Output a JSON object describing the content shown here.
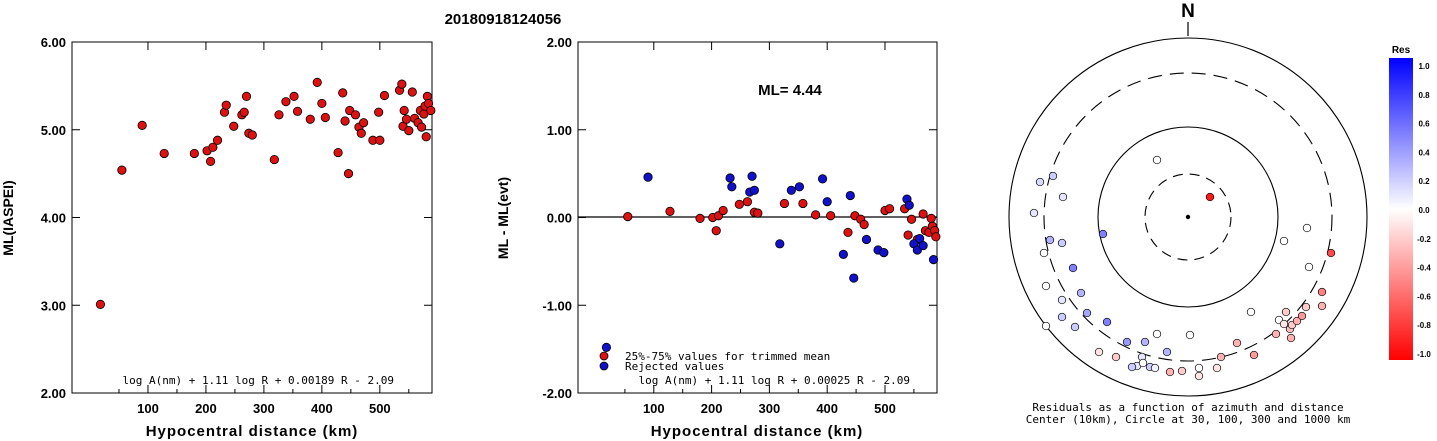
{
  "title": "20180918124056",
  "colors": {
    "red": "#dd1111",
    "blue": "#1111cc",
    "frame": "#000000"
  },
  "chart_data": [
    {
      "type": "scatter",
      "xlabel": "Hypocentral distance (km)",
      "ylabel": "ML(IASPEI)",
      "xlim": [
        0,
        590
      ],
      "ylim": [
        2.0,
        6.0
      ],
      "xticks": [
        "100",
        "200",
        "300",
        "400",
        "500"
      ],
      "yticks": [
        "2.00",
        "3.00",
        "4.00",
        "5.00",
        "6.00"
      ],
      "formula": "log A(nm) + 1.11 log R + 0.00189 R - 2.09",
      "points": [
        [
          18,
          3.01
        ],
        [
          55,
          4.54
        ],
        [
          90,
          5.05
        ],
        [
          128,
          4.73
        ],
        [
          180,
          4.73
        ],
        [
          202,
          4.76
        ],
        [
          208,
          4.64
        ],
        [
          212,
          4.8
        ],
        [
          220,
          4.88
        ],
        [
          232,
          5.2
        ],
        [
          235,
          5.28
        ],
        [
          248,
          5.04
        ],
        [
          262,
          5.17
        ],
        [
          266,
          5.2
        ],
        [
          270,
          5.38
        ],
        [
          274,
          4.96
        ],
        [
          280,
          4.94
        ],
        [
          318,
          4.66
        ],
        [
          326,
          5.17
        ],
        [
          338,
          5.32
        ],
        [
          352,
          5.38
        ],
        [
          358,
          5.21
        ],
        [
          380,
          5.12
        ],
        [
          392,
          5.54
        ],
        [
          400,
          5.3
        ],
        [
          406,
          5.14
        ],
        [
          428,
          4.74
        ],
        [
          436,
          5.42
        ],
        [
          440,
          5.1
        ],
        [
          446,
          4.5
        ],
        [
          448,
          5.22
        ],
        [
          458,
          5.17
        ],
        [
          464,
          5.03
        ],
        [
          468,
          4.96
        ],
        [
          472,
          5.08
        ],
        [
          488,
          4.88
        ],
        [
          498,
          5.2
        ],
        [
          500,
          4.88
        ],
        [
          508,
          5.39
        ],
        [
          534,
          5.45
        ],
        [
          538,
          5.52
        ],
        [
          540,
          5.04
        ],
        [
          542,
          5.22
        ],
        [
          546,
          5.12
        ],
        [
          550,
          4.99
        ],
        [
          556,
          5.43
        ],
        [
          560,
          5.13
        ],
        [
          566,
          5.08
        ],
        [
          570,
          5.22
        ],
        [
          572,
          5.03
        ],
        [
          576,
          5.18
        ],
        [
          578,
          5.27
        ],
        [
          580,
          4.92
        ],
        [
          582,
          5.38
        ],
        [
          584,
          5.3
        ],
        [
          588,
          5.22
        ]
      ]
    },
    {
      "type": "scatter",
      "xlabel": "Hypocentral distance (km)",
      "ylabel": "ML - ML(evt)",
      "xlim": [
        0,
        590
      ],
      "ylim": [
        -2.0,
        2.0
      ],
      "xticks": [
        "100",
        "200",
        "300",
        "400",
        "500"
      ],
      "yticks": [
        "-2.00",
        "-1.00",
        "0.00",
        "1.00",
        "2.00"
      ],
      "annotation": "ML= 4.44",
      "formula": "log A(nm) + 1.11 log R + 0.00025 R - 2.09",
      "legend": {
        "position": "bottom-left",
        "entries": [
          "25%-75% values for trimmed mean",
          "Rejected values"
        ]
      },
      "points_used": [
        [
          55,
          0.01
        ],
        [
          128,
          0.07
        ],
        [
          180,
          -0.01
        ],
        [
          202,
          0.0
        ],
        [
          208,
          -0.15
        ],
        [
          212,
          0.02
        ],
        [
          220,
          0.08
        ],
        [
          248,
          0.15
        ],
        [
          262,
          0.18
        ],
        [
          274,
          0.06
        ],
        [
          280,
          0.05
        ],
        [
          326,
          0.16
        ],
        [
          358,
          0.16
        ],
        [
          380,
          0.03
        ],
        [
          406,
          0.02
        ],
        [
          436,
          -0.17
        ],
        [
          448,
          0.02
        ],
        [
          458,
          -0.02
        ],
        [
          464,
          -0.08
        ],
        [
          500,
          0.08
        ],
        [
          508,
          0.1
        ],
        [
          534,
          0.1
        ],
        [
          540,
          -0.2
        ],
        [
          546,
          -0.02
        ],
        [
          556,
          -0.25
        ],
        [
          566,
          0.04
        ],
        [
          570,
          -0.15
        ],
        [
          576,
          -0.17
        ],
        [
          580,
          -0.01
        ],
        [
          582,
          -0.1
        ],
        [
          586,
          -0.15
        ],
        [
          588,
          -0.22
        ]
      ],
      "points_rejected": [
        [
          18,
          -1.48
        ],
        [
          90,
          0.46
        ],
        [
          232,
          0.45
        ],
        [
          235,
          0.35
        ],
        [
          266,
          0.29
        ],
        [
          270,
          0.47
        ],
        [
          274,
          0.31
        ],
        [
          318,
          -0.3
        ],
        [
          338,
          0.31
        ],
        [
          352,
          0.35
        ],
        [
          392,
          0.44
        ],
        [
          400,
          0.18
        ],
        [
          428,
          -0.42
        ],
        [
          440,
          0.25
        ],
        [
          446,
          -0.69
        ],
        [
          468,
          -0.25
        ],
        [
          488,
          -0.37
        ],
        [
          498,
          -0.4
        ],
        [
          538,
          0.21
        ],
        [
          542,
          0.14
        ],
        [
          550,
          -0.3
        ],
        [
          556,
          -0.37
        ],
        [
          560,
          -0.24
        ],
        [
          566,
          -0.32
        ],
        [
          584,
          -0.48
        ]
      ]
    },
    {
      "type": "polar",
      "north_label": "N",
      "center_label": "Center (10km), Circle at 30, 100, 300 and 1000 km",
      "caption": "Residuals as a function of azimuth and distance",
      "colorbar": {
        "title": "Res",
        "range": [
          -1.0,
          1.0
        ],
        "ticks": [
          "1.0",
          "0.8",
          "0.6",
          "0.4",
          "0.2",
          "0.0",
          "-0.2",
          "-0.4",
          "-0.6",
          "-0.8",
          "-1.0"
        ]
      },
      "points": [
        [
          1210,
          197,
          -0.9
        ],
        [
          1157,
          160,
          0.0
        ],
        [
          1040,
          182,
          0.15
        ],
        [
          1053,
          176,
          0.2
        ],
        [
          1063,
          197,
          0.1
        ],
        [
          1034,
          213,
          0.1
        ],
        [
          1103,
          234,
          0.5
        ],
        [
          1050,
          240,
          0.3
        ],
        [
          1062,
          243,
          0.2
        ],
        [
          1044,
          253,
          0.0
        ],
        [
          1073,
          268,
          0.5
        ],
        [
          1046,
          286,
          0.0
        ],
        [
          1062,
          300,
          0.1
        ],
        [
          1081,
          293,
          0.3
        ],
        [
          1087,
          313,
          0.35
        ],
        [
          1062,
          317,
          0.2
        ],
        [
          1075,
          327,
          0.2
        ],
        [
          1107,
          322,
          0.5
        ],
        [
          1046,
          326,
          0.0
        ],
        [
          1127,
          342,
          0.4
        ],
        [
          1145,
          342,
          0.3
        ],
        [
          1099,
          352,
          -0.1
        ],
        [
          1116,
          357,
          -0.2
        ],
        [
          1142,
          357,
          0.1
        ],
        [
          1167,
          352,
          0.3
        ],
        [
          1157,
          334,
          0.0
        ],
        [
          1137,
          366,
          0.1
        ],
        [
          1132,
          367,
          0.2
        ],
        [
          1143,
          363,
          0.0
        ],
        [
          1150,
          367,
          0.2
        ],
        [
          1155,
          368,
          0.05
        ],
        [
          1170,
          372,
          -0.3
        ],
        [
          1182,
          371,
          -0.2
        ],
        [
          1199,
          368,
          0.0
        ],
        [
          1199,
          376,
          -0.1
        ],
        [
          1217,
          368,
          -0.1
        ],
        [
          1221,
          357,
          -0.3
        ],
        [
          1190,
          335,
          0.0
        ],
        [
          1237,
          343,
          -0.3
        ],
        [
          1254,
          355,
          -0.4
        ],
        [
          1251,
          312,
          0.0
        ],
        [
          1279,
          320,
          0.0
        ],
        [
          1284,
          324,
          -0.1
        ],
        [
          1290,
          329,
          -0.25
        ],
        [
          1292,
          325,
          -0.2
        ],
        [
          1276,
          334,
          -0.3
        ],
        [
          1291,
          338,
          -0.3
        ],
        [
          1297,
          321,
          -0.3
        ],
        [
          1286,
          312,
          -0.2
        ],
        [
          1302,
          316,
          -0.4
        ],
        [
          1306,
          307,
          -0.2
        ],
        [
          1322,
          292,
          -0.5
        ],
        [
          1309,
          267,
          0.0
        ],
        [
          1307,
          228,
          0.0
        ],
        [
          1284,
          241,
          0.0
        ],
        [
          1331,
          253,
          -0.7
        ],
        [
          1322,
          306,
          -0.3
        ]
      ]
    }
  ]
}
